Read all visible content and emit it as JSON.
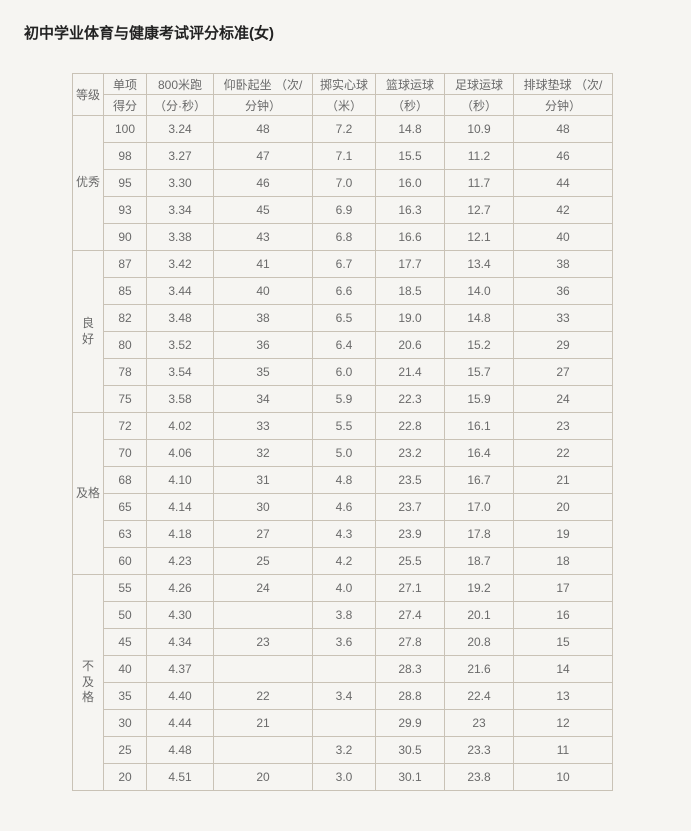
{
  "title": "初中学业体育与健康考试评分标准(女)",
  "table": {
    "columns": {
      "grade": {
        "line1": "等级",
        "line2": ""
      },
      "score": {
        "line1": "单项",
        "line2": "得分"
      },
      "run800": {
        "line1": "800米跑",
        "line2": "（分·秒）"
      },
      "situp": {
        "line1": "仰卧起坐 （次/",
        "line2": "分钟）"
      },
      "solid": {
        "line1": "掷实心球",
        "line2": "（米）"
      },
      "bask": {
        "line1": "篮球运球",
        "line2": "（秒）"
      },
      "foot": {
        "line1": "足球运球",
        "line2": "（秒）"
      },
      "voll": {
        "line1": "排球垫球 （次/",
        "line2": "分钟）"
      }
    },
    "groups": [
      {
        "grade": "优秀",
        "rows": [
          {
            "score": "100",
            "run800": "3.24",
            "situp": "48",
            "solid": "7.2",
            "bask": "14.8",
            "foot": "10.9",
            "voll": "48"
          },
          {
            "score": "98",
            "run800": "3.27",
            "situp": "47",
            "solid": "7.1",
            "bask": "15.5",
            "foot": "11.2",
            "voll": "46"
          },
          {
            "score": "95",
            "run800": "3.30",
            "situp": "46",
            "solid": "7.0",
            "bask": "16.0",
            "foot": "11.7",
            "voll": "44"
          },
          {
            "score": "93",
            "run800": "3.34",
            "situp": "45",
            "solid": "6.9",
            "bask": "16.3",
            "foot": "12.7",
            "voll": "42"
          },
          {
            "score": "90",
            "run800": "3.38",
            "situp": "43",
            "solid": "6.8",
            "bask": "16.6",
            "foot": "12.1",
            "voll": "40"
          }
        ]
      },
      {
        "grade": "良 好",
        "rows": [
          {
            "score": "87",
            "run800": "3.42",
            "situp": "41",
            "solid": "6.7",
            "bask": "17.7",
            "foot": "13.4",
            "voll": "38"
          },
          {
            "score": "85",
            "run800": "3.44",
            "situp": "40",
            "solid": "6.6",
            "bask": "18.5",
            "foot": "14.0",
            "voll": "36"
          },
          {
            "score": "82",
            "run800": "3.48",
            "situp": "38",
            "solid": "6.5",
            "bask": "19.0",
            "foot": "14.8",
            "voll": "33"
          },
          {
            "score": "80",
            "run800": "3.52",
            "situp": "36",
            "solid": "6.4",
            "bask": "20.6",
            "foot": "15.2",
            "voll": "29"
          },
          {
            "score": "78",
            "run800": "3.54",
            "situp": "35",
            "solid": "6.0",
            "bask": "21.4",
            "foot": "15.7",
            "voll": "27"
          },
          {
            "score": "75",
            "run800": "3.58",
            "situp": "34",
            "solid": "5.9",
            "bask": "22.3",
            "foot": "15.9",
            "voll": "24"
          }
        ]
      },
      {
        "grade": "及格",
        "rows": [
          {
            "score": "72",
            "run800": "4.02",
            "situp": "33",
            "solid": "5.5",
            "bask": "22.8",
            "foot": "16.1",
            "voll": "23"
          },
          {
            "score": "70",
            "run800": "4.06",
            "situp": "32",
            "solid": "5.0",
            "bask": "23.2",
            "foot": "16.4",
            "voll": "22"
          },
          {
            "score": "68",
            "run800": "4.10",
            "situp": "31",
            "solid": "4.8",
            "bask": "23.5",
            "foot": "16.7",
            "voll": "21"
          },
          {
            "score": "65",
            "run800": "4.14",
            "situp": "30",
            "solid": "4.6",
            "bask": "23.7",
            "foot": "17.0",
            "voll": "20"
          },
          {
            "score": "63",
            "run800": "4.18",
            "situp": "27",
            "solid": "4.3",
            "bask": "23.9",
            "foot": "17.8",
            "voll": "19"
          },
          {
            "score": "60",
            "run800": "4.23",
            "situp": "25",
            "solid": "4.2",
            "bask": "25.5",
            "foot": "18.7",
            "voll": "18"
          }
        ]
      },
      {
        "grade": "不 及 格",
        "rows": [
          {
            "score": "55",
            "run800": "4.26",
            "situp": "24",
            "solid": "4.0",
            "bask": "27.1",
            "foot": "19.2",
            "voll": "17"
          },
          {
            "score": "50",
            "run800": "4.30",
            "situp": "",
            "solid": "3.8",
            "bask": "27.4",
            "foot": "20.1",
            "voll": "16"
          },
          {
            "score": "45",
            "run800": "4.34",
            "situp": "23",
            "solid": "3.6",
            "bask": "27.8",
            "foot": "20.8",
            "voll": "15"
          },
          {
            "score": "40",
            "run800": "4.37",
            "situp": "",
            "solid": "",
            "bask": "28.3",
            "foot": "21.6",
            "voll": "14"
          },
          {
            "score": "35",
            "run800": "4.40",
            "situp": "22",
            "solid": "3.4",
            "bask": "28.8",
            "foot": "22.4",
            "voll": "13"
          },
          {
            "score": "30",
            "run800": "4.44",
            "situp": "21",
            "solid": "",
            "bask": "29.9",
            "foot": "23",
            "voll": "12"
          },
          {
            "score": "25",
            "run800": "4.48",
            "situp": "",
            "solid": "3.2",
            "bask": "30.5",
            "foot": "23.3",
            "voll": "11"
          },
          {
            "score": "20",
            "run800": "4.51",
            "situp": "20",
            "solid": "3.0",
            "bask": "30.1",
            "foot": "23.8",
            "voll": "10"
          }
        ]
      }
    ]
  },
  "style": {
    "background_color": "#f6f5f2",
    "border_color": "#c9c2b6",
    "text_color": "#6a6a6a",
    "title_color": "#222222",
    "title_fontsize": 15,
    "cell_fontsize": 12
  }
}
